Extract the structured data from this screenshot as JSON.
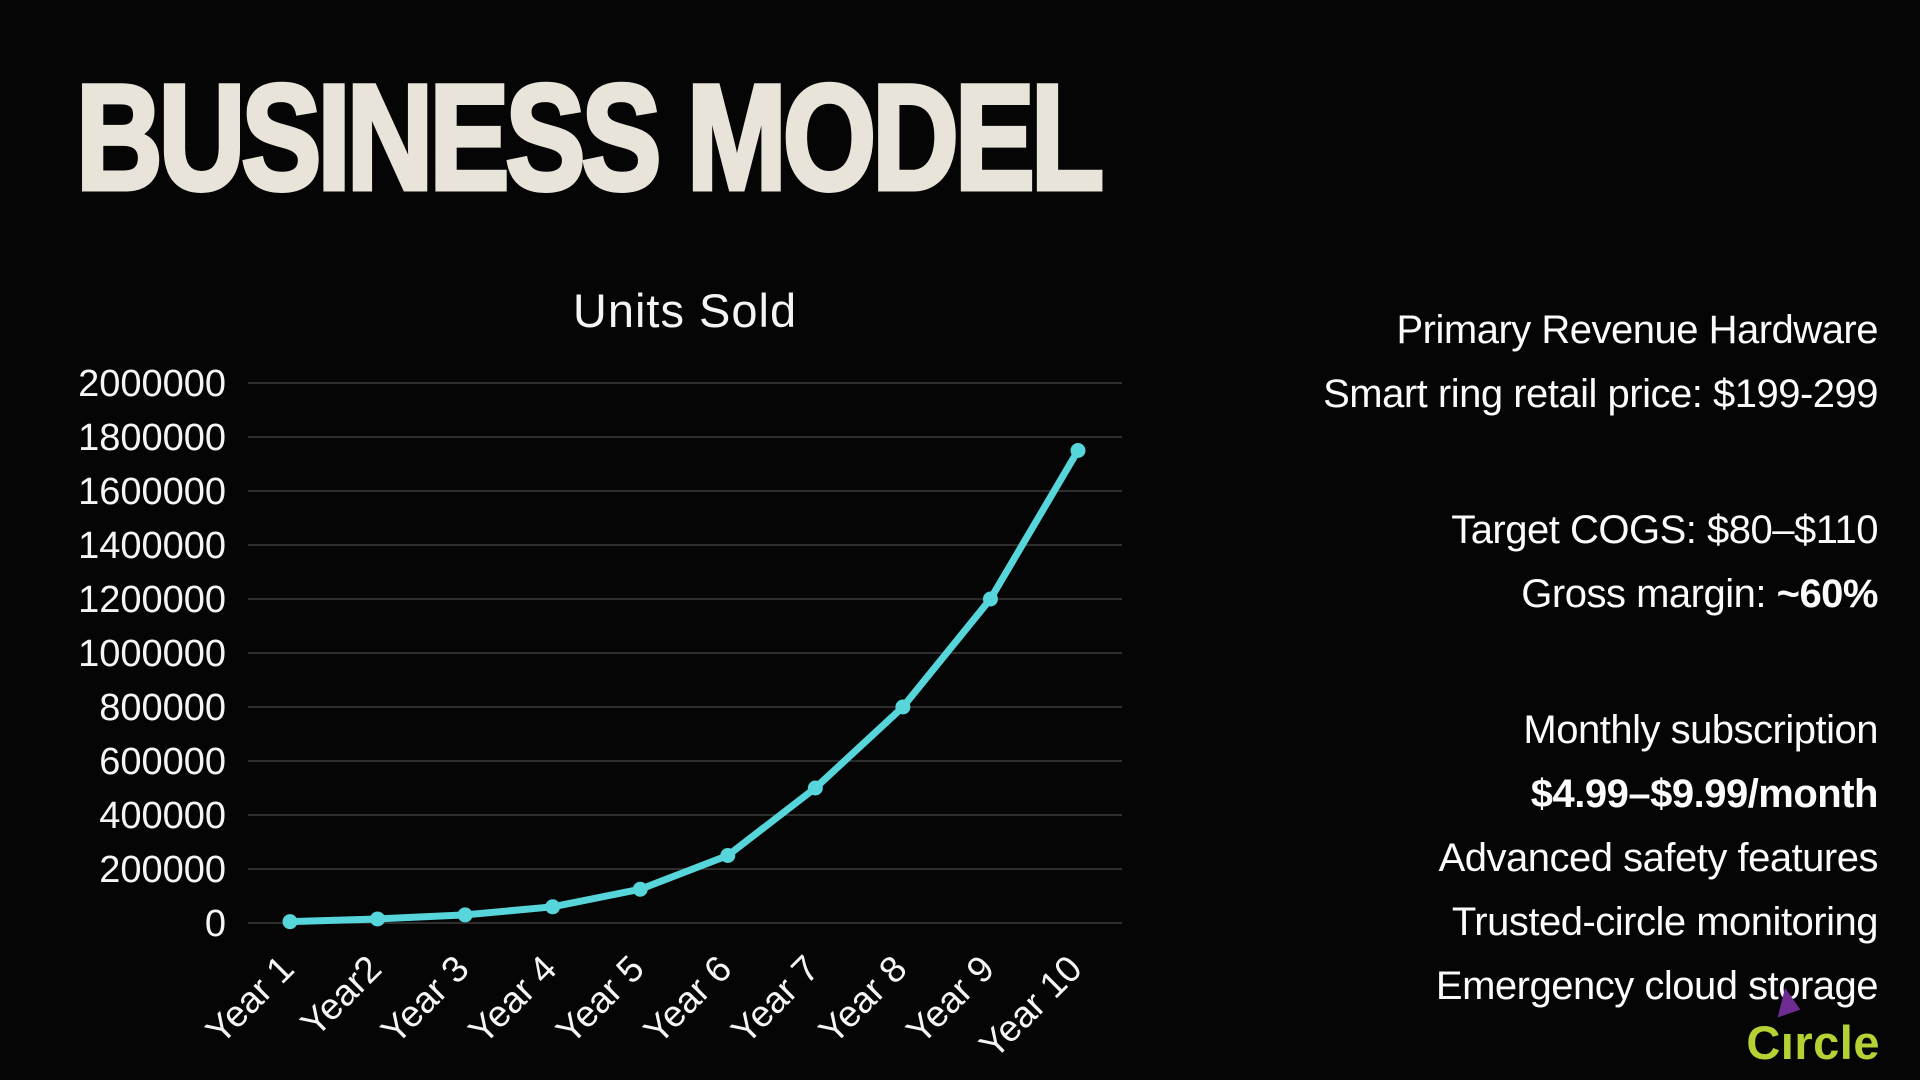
{
  "slide": {
    "title": "BUSINESS MODEL",
    "title_color": "#e9e4d9",
    "background_color": "#050505"
  },
  "chart_data": {
    "type": "line",
    "title": "Units Sold",
    "categories": [
      "Year 1",
      "Year2",
      "Year 3",
      "Year 4",
      "Year 5",
      "Year 6",
      "Year 7",
      "Year 8",
      "Year 9",
      "Year 10"
    ],
    "values": [
      5000,
      15000,
      30000,
      60000,
      125000,
      250000,
      500000,
      800000,
      1200000,
      1750000
    ],
    "xlabel": "",
    "ylabel": "",
    "ylim": [
      0,
      2000000
    ],
    "yticks": [
      0,
      200000,
      400000,
      600000,
      800000,
      1000000,
      1200000,
      1400000,
      1600000,
      1800000,
      2000000
    ],
    "grid": "horizontal",
    "legend": "none",
    "xlabel_rotation": -45,
    "marker": "circle",
    "line_color": "#56d5da",
    "grid_color": "#3b3b3b",
    "tick_label_color": "#f5f5f5"
  },
  "right_panel": {
    "blocks": [
      {
        "lines": [
          {
            "pre": "Primary Revenue Hardware"
          },
          {
            "pre": "Smart ring retail price: $199-299"
          }
        ]
      },
      {
        "lines": [
          {
            "pre": "Target COGS: $80–$110"
          },
          {
            "pre": "Gross margin: ",
            "strong": "~60%"
          }
        ]
      },
      {
        "lines": [
          {
            "pre": "Monthly subscription"
          },
          {
            "strong": "$4.99–$9.99/month"
          },
          {
            "pre": "Advanced safety features"
          },
          {
            "pre": "Trusted-circle monitoring"
          },
          {
            "pre": "Emergency cloud storage"
          }
        ]
      }
    ]
  },
  "logo": {
    "before_i": "C",
    "i_stem": "ı",
    "after_i": "rcle",
    "full_text": "Circle",
    "color": "#b4d233",
    "triangle_color": "#6e2b92"
  }
}
